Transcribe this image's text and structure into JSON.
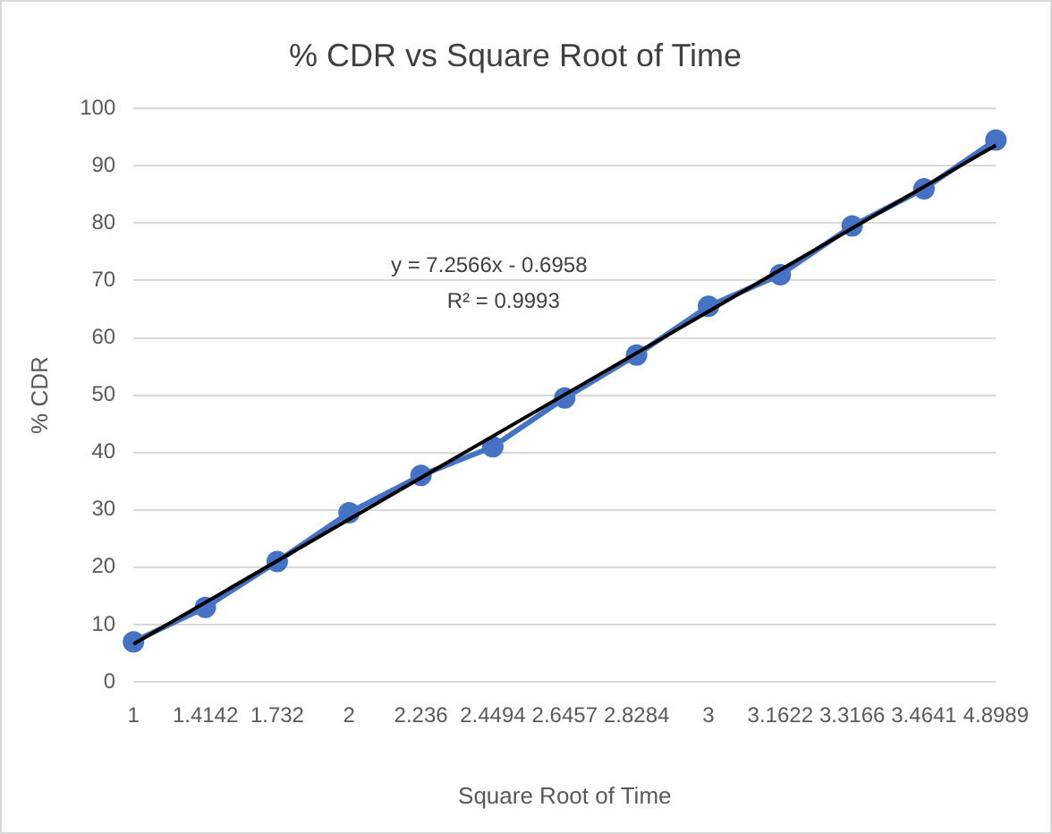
{
  "chart_data": {
    "type": "line",
    "title": "% CDR vs Square Root of Time",
    "xlabel": "Square Root of Time",
    "ylabel": "% CDR",
    "categories": [
      "1",
      "1.4142",
      "1.732",
      "2",
      "2.236",
      "2.4494",
      "2.6457",
      "2.8284",
      "3",
      "3.1622",
      "3.3166",
      "3.4641",
      "4.8989"
    ],
    "series": [
      {
        "color": "#4472c4",
        "marker": "circle",
        "values": [
          7,
          13,
          21,
          29.5,
          36,
          41,
          49.5,
          57,
          65.5,
          71,
          79.5,
          86,
          94.5
        ]
      },
      {
        "color": "#000000",
        "marker": "none",
        "x": [
          "1",
          "4.8989"
        ],
        "values": [
          6.6,
          93.6
        ]
      }
    ],
    "ylim": [
      0,
      100
    ],
    "yticks": [
      0,
      10,
      20,
      30,
      40,
      50,
      60,
      70,
      80,
      90,
      100
    ],
    "grid": "y",
    "legend": false,
    "annotations": [
      "y = 7.2566x - 0.6958",
      "R² = 0.9993"
    ]
  }
}
